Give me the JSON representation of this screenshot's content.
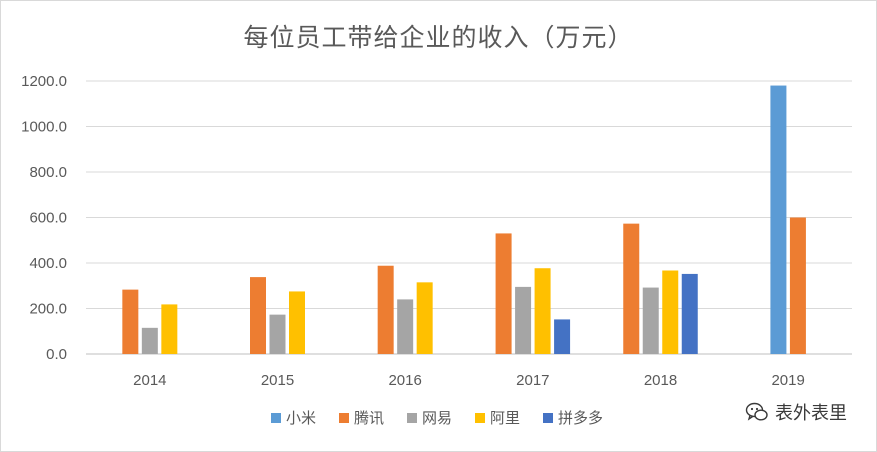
{
  "chart_data": {
    "type": "bar",
    "title": "每位员工带给企业的收入（万元）",
    "xlabel": "",
    "ylabel": "",
    "ylim": [
      0,
      1200
    ],
    "yticks": [
      "0.0",
      "200.0",
      "400.0",
      "600.0",
      "800.0",
      "1000.0",
      "1200.0"
    ],
    "grid": true,
    "legend_position": "bottom",
    "categories": [
      "2014",
      "2015",
      "2016",
      "2017",
      "2018",
      "2019"
    ],
    "series": [
      {
        "name": "小米",
        "color": "#5b9bd5",
        "values": [
          null,
          null,
          null,
          null,
          null,
          1180
        ]
      },
      {
        "name": "腾讯",
        "color": "#ed7d31",
        "values": [
          283,
          338,
          388,
          530,
          573,
          600
        ]
      },
      {
        "name": "网易",
        "color": "#a5a5a5",
        "values": [
          115,
          173,
          240,
          295,
          292,
          null
        ]
      },
      {
        "name": "阿里",
        "color": "#ffc000",
        "values": [
          218,
          275,
          315,
          377,
          367,
          null
        ]
      },
      {
        "name": "拼多多",
        "color": "#4472c4",
        "values": [
          null,
          null,
          null,
          152,
          352,
          null
        ]
      }
    ]
  },
  "watermark": {
    "text": "表外表里",
    "icon": "wechat-icon"
  }
}
